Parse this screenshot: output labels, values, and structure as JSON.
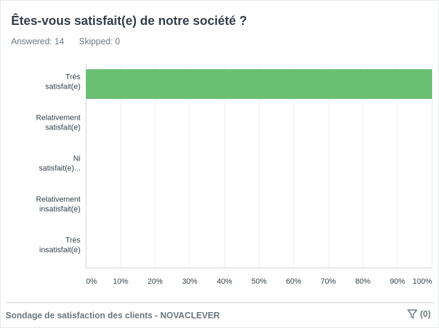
{
  "question": {
    "title": "Êtes-vous satisfait(e) de notre société ?",
    "answered": "Answered: 14",
    "skipped": "Skipped: 0"
  },
  "chart_data": {
    "type": "bar",
    "orientation": "horizontal",
    "categories": [
      [
        "Très",
        "satisfait(e)"
      ],
      [
        "Relativement",
        "satisfait(e)"
      ],
      [
        "Ni",
        "satisfait(e)..."
      ],
      [
        "Relativement",
        "insatisfait(e)"
      ],
      [
        "Très",
        "insatisfait(e)"
      ]
    ],
    "values": [
      100,
      0,
      0,
      0,
      0
    ],
    "xlim": [
      0,
      100
    ],
    "xticks": [
      "0%",
      "10%",
      "20%",
      "30%",
      "40%",
      "50%",
      "60%",
      "70%",
      "80%",
      "90%",
      "100%"
    ],
    "bar_color": "#6bbf73",
    "grid": true
  },
  "footer": {
    "survey": "Sondage de satisfaction des clients - NOVACLEVER",
    "filter_icon": "filter-icon",
    "filter_count": "(0)"
  }
}
